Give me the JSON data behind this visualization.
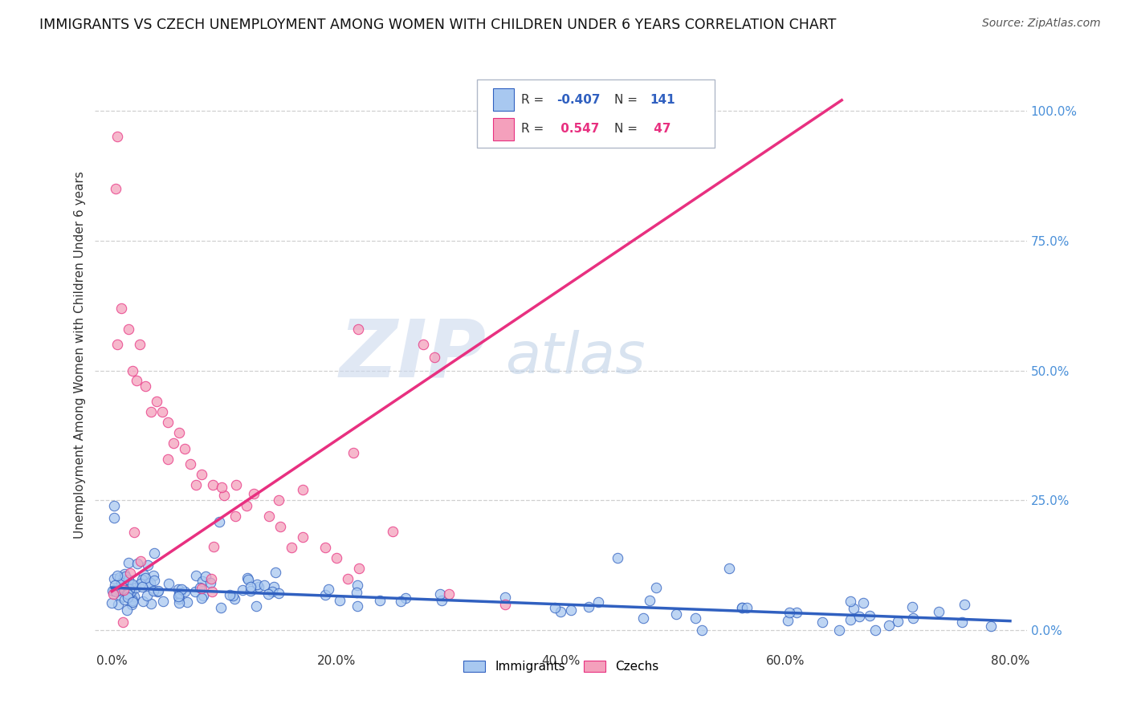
{
  "title": "IMMIGRANTS VS CZECH UNEMPLOYMENT AMONG WOMEN WITH CHILDREN UNDER 6 YEARS CORRELATION CHART",
  "source": "Source: ZipAtlas.com",
  "ylabel": "Unemployment Among Women with Children Under 6 years",
  "xlabel_ticks": [
    "0.0%",
    "20.0%",
    "40.0%",
    "60.0%",
    "80.0%"
  ],
  "ylabel_ticks": [
    "0.0%",
    "25.0%",
    "50.0%",
    "75.0%",
    "100.0%"
  ],
  "xlim": [
    -0.015,
    0.815
  ],
  "ylim": [
    -0.04,
    1.1
  ],
  "legend_labels": [
    "Immigrants",
    "Czechs"
  ],
  "immigrants_color": "#a8c8f0",
  "czechs_color": "#f4a0bc",
  "immigrants_line_color": "#3060c0",
  "czechs_line_color": "#e83080",
  "R_immigrants": -0.407,
  "N_immigrants": 141,
  "R_czechs": 0.547,
  "N_czechs": 47,
  "watermark_zip": "ZIP",
  "watermark_atlas": "atlas",
  "background_color": "#ffffff",
  "grid_color": "#d0d0d0",
  "ytick_color": "#4a90d9",
  "imm_line_x0": 0.0,
  "imm_line_y0": 0.082,
  "imm_line_x1": 0.8,
  "imm_line_y1": 0.018,
  "czk_line_x0": 0.0,
  "czk_line_y0": 0.075,
  "czk_line_x1": 0.65,
  "czk_line_y1": 1.02
}
